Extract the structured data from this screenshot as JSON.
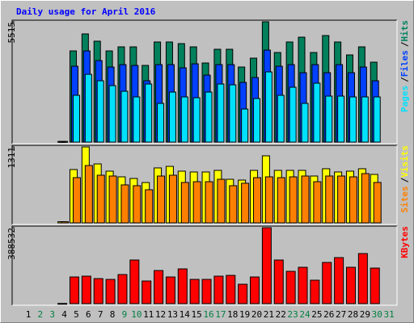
{
  "chart_data": {
    "type": "bar",
    "title": "Daily usage for April 2016",
    "categories": [
      "1",
      "2",
      "3",
      "4",
      "5",
      "6",
      "7",
      "8",
      "9",
      "10",
      "11",
      "12",
      "13",
      "14",
      "15",
      "16",
      "17",
      "18",
      "19",
      "20",
      "21",
      "22",
      "23",
      "24",
      "25",
      "26",
      "27",
      "28",
      "29",
      "30",
      "31"
    ],
    "category_colors": [
      "#000000",
      "#008040",
      "#008040",
      "#000000",
      "#000000",
      "#000000",
      "#000000",
      "#000000",
      "#008040",
      "#008040",
      "#000000",
      "#000000",
      "#000000",
      "#000000",
      "#000000",
      "#008040",
      "#008040",
      "#000000",
      "#000000",
      "#000000",
      "#000000",
      "#000000",
      "#008040",
      "#008040",
      "#000000",
      "#000000",
      "#000000",
      "#000000",
      "#000000",
      "#008040",
      "#008040"
    ],
    "legend_separator": "/",
    "panels": [
      {
        "ylim": [
          0,
          5515
        ],
        "yticks": [
          5515
        ],
        "series": [
          {
            "name": "Hits",
            "color": "#00805C",
            "values": [
              null,
              null,
              null,
              30,
              4181,
              4960,
              4627,
              4181,
              4367,
              4367,
              3516,
              4590,
              4590,
              4515,
              4367,
              3627,
              4256,
              4256,
              3442,
              3849,
              5515,
              4108,
              4590,
              4811,
              4108,
              4885,
              4590,
              3997,
              4367,
              3664,
              null
            ]
          },
          {
            "name": "Files",
            "color": "#0040FF",
            "values": [
              null,
              null,
              null,
              30,
              3478,
              4181,
              3737,
              3441,
              3552,
              3515,
              2812,
              3552,
              3552,
              3404,
              3589,
              3071,
              3552,
              3552,
              2738,
              2960,
              4218,
              3478,
              3552,
              3182,
              3552,
              3182,
              3552,
              3182,
              3441,
              2812,
              null
            ]
          },
          {
            "name": "Pages",
            "color": "#00E0FF",
            "values": [
              null,
              null,
              null,
              30,
              2146,
              3108,
              2812,
              2590,
              2331,
              2072,
              2664,
              1776,
              2294,
              2072,
              2035,
              2294,
              2664,
              2627,
              1517,
              1998,
              3219,
              2146,
              2516,
              1776,
              2701,
              2109,
              2109,
              2072,
              2072,
              2072,
              null
            ]
          }
        ]
      },
      {
        "ylim": [
          0,
          1311
        ],
        "yticks": [
          1311
        ],
        "series": [
          {
            "name": "Visits",
            "color": "#FFFF00",
            "values": [
              null,
              null,
              null,
              20,
              921,
              1311,
              1018,
              893,
              795,
              767,
              697,
              949,
              976,
              893,
              879,
              879,
              907,
              753,
              739,
              907,
              1158,
              907,
              907,
              907,
              809,
              935,
              879,
              893,
              935,
              837,
              null
            ]
          },
          {
            "name": "Sites",
            "color": "#FF8000",
            "values": [
              null,
              null,
              null,
              20,
              781,
              990,
              823,
              809,
              656,
              642,
              572,
              809,
              823,
              698,
              711,
              711,
              753,
              642,
              684,
              781,
              795,
              781,
              795,
              809,
              711,
              809,
              809,
              795,
              851,
              698,
              null
            ]
          }
        ]
      },
      {
        "ylim": [
          0,
          388532
        ],
        "yticks": [
          388532
        ],
        "series": [
          {
            "name": "KBytes",
            "color": "#FF0000",
            "values": [
              null,
              null,
              null,
              1000,
              136389,
              140522,
              128123,
              123990,
              148788,
              223182,
              115724,
              169453,
              136389,
              177719,
              123990,
              123990,
              140522,
              144655,
              99192,
              136389,
              388532,
              223182,
              165320,
              185985,
              119857,
              210783,
              235581,
              185985,
              256246,
              181852,
              null
            ]
          }
        ]
      }
    ]
  }
}
